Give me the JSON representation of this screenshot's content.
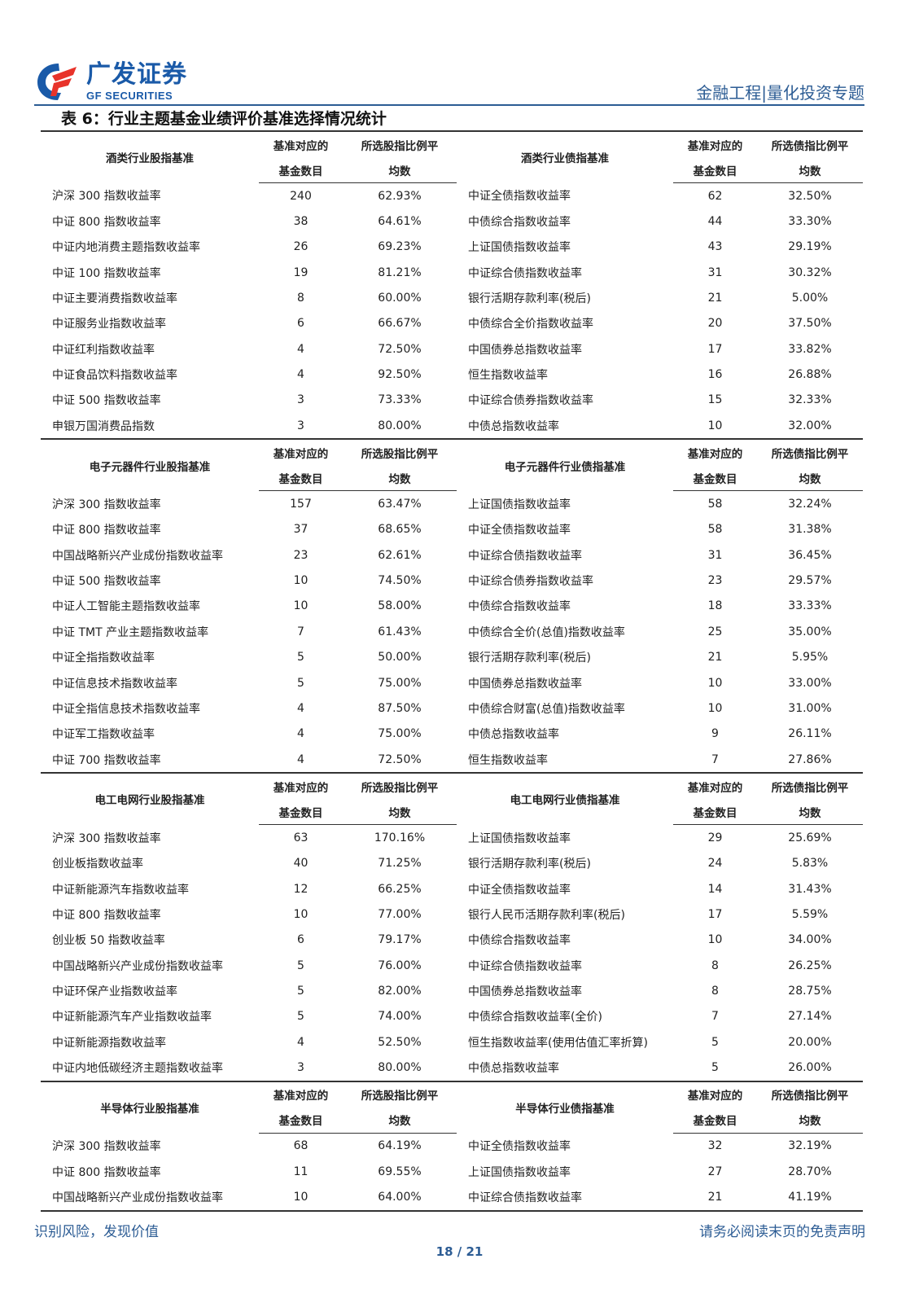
{
  "header": {
    "logo_cn": "广发证券",
    "logo_en": "GF SECURITIES",
    "report_type": "金融工程|量化投资专题",
    "brand_color": "#1a5aa8",
    "accent_color": "#e8332a"
  },
  "table_title": "表 6：行业主题基金业绩评价基准选择情况统计",
  "col_headers": {
    "count_line1": "基准对应的",
    "count_line2": "基金数目",
    "stock_pct_line1": "所选股指比例平",
    "stock_pct_line2": "均数",
    "bond_pct_line1": "所选债指比例平",
    "bond_pct_line2": "均数"
  },
  "sections": [
    {
      "stock_header": "酒类行业股指基准",
      "bond_header": "酒类行业债指基准",
      "rows": [
        {
          "stock": "沪深 300 指数收益率",
          "sc": "240",
          "sp": "62.93%",
          "bond": "中证全债指数收益率",
          "bc": "62",
          "bp": "32.50%"
        },
        {
          "stock": "中证 800 指数收益率",
          "sc": "38",
          "sp": "64.61%",
          "bond": "中债综合指数收益率",
          "bc": "44",
          "bp": "33.30%"
        },
        {
          "stock": "中证内地消费主题指数收益率",
          "sc": "26",
          "sp": "69.23%",
          "bond": "上证国债指数收益率",
          "bc": "43",
          "bp": "29.19%"
        },
        {
          "stock": "中证 100 指数收益率",
          "sc": "19",
          "sp": "81.21%",
          "bond": "中证综合债指数收益率",
          "bc": "31",
          "bp": "30.32%"
        },
        {
          "stock": "中证主要消费指数收益率",
          "sc": "8",
          "sp": "60.00%",
          "bond": "银行活期存款利率(税后)",
          "bc": "21",
          "bp": "5.00%"
        },
        {
          "stock": "中证服务业指数收益率",
          "sc": "6",
          "sp": "66.67%",
          "bond": "中债综合全价指数收益率",
          "bc": "20",
          "bp": "37.50%"
        },
        {
          "stock": "中证红利指数收益率",
          "sc": "4",
          "sp": "72.50%",
          "bond": "中国债券总指数收益率",
          "bc": "17",
          "bp": "33.82%"
        },
        {
          "stock": "中证食品饮料指数收益率",
          "sc": "4",
          "sp": "92.50%",
          "bond": "恒生指数收益率",
          "bc": "16",
          "bp": "26.88%"
        },
        {
          "stock": "中证 500 指数收益率",
          "sc": "3",
          "sp": "73.33%",
          "bond": "中证综合债券指数收益率",
          "bc": "15",
          "bp": "32.33%"
        },
        {
          "stock": "申银万国消费品指数",
          "sc": "3",
          "sp": "80.00%",
          "bond": "中债总指数收益率",
          "bc": "10",
          "bp": "32.00%"
        }
      ]
    },
    {
      "stock_header": "电子元器件行业股指基准",
      "bond_header": "电子元器件行业债指基准",
      "rows": [
        {
          "stock": "沪深 300 指数收益率",
          "sc": "157",
          "sp": "63.47%",
          "bond": "上证国债指数收益率",
          "bc": "58",
          "bp": "32.24%"
        },
        {
          "stock": "中证 800 指数收益率",
          "sc": "37",
          "sp": "68.65%",
          "bond": "中证全债指数收益率",
          "bc": "58",
          "bp": "31.38%"
        },
        {
          "stock": "中国战略新兴产业成份指数收益率",
          "sc": "23",
          "sp": "62.61%",
          "bond": "中证综合债指数收益率",
          "bc": "31",
          "bp": "36.45%"
        },
        {
          "stock": "中证 500 指数收益率",
          "sc": "10",
          "sp": "74.50%",
          "bond": "中证综合债券指数收益率",
          "bc": "23",
          "bp": "29.57%"
        },
        {
          "stock": "中证人工智能主题指数收益率",
          "sc": "10",
          "sp": "58.00%",
          "bond": "中债综合指数收益率",
          "bc": "18",
          "bp": "33.33%"
        },
        {
          "stock": "中证 TMT 产业主题指数收益率",
          "sc": "7",
          "sp": "61.43%",
          "bond": "中债综合全价(总值)指数收益率",
          "bc": "25",
          "bp": "35.00%"
        },
        {
          "stock": "中证全指指数收益率",
          "sc": "5",
          "sp": "50.00%",
          "bond": "银行活期存款利率(税后)",
          "bc": "21",
          "bp": "5.95%"
        },
        {
          "stock": "中证信息技术指数收益率",
          "sc": "5",
          "sp": "75.00%",
          "bond": "中国债券总指数收益率",
          "bc": "10",
          "bp": "33.00%"
        },
        {
          "stock": "中证全指信息技术指数收益率",
          "sc": "4",
          "sp": "87.50%",
          "bond": "中债综合财富(总值)指数收益率",
          "bc": "10",
          "bp": "31.00%"
        },
        {
          "stock": "中证军工指数收益率",
          "sc": "4",
          "sp": "75.00%",
          "bond": "中债总指数收益率",
          "bc": "9",
          "bp": "26.11%"
        },
        {
          "stock": "中证 700 指数收益率",
          "sc": "4",
          "sp": "72.50%",
          "bond": "恒生指数收益率",
          "bc": "7",
          "bp": "27.86%"
        }
      ]
    },
    {
      "stock_header": "电工电网行业股指基准",
      "bond_header": "电工电网行业债指基准",
      "rows": [
        {
          "stock": "沪深 300 指数收益率",
          "sc": "63",
          "sp": "170.16%",
          "bond": "上证国债指数收益率",
          "bc": "29",
          "bp": "25.69%"
        },
        {
          "stock": "创业板指数收益率",
          "sc": "40",
          "sp": "71.25%",
          "bond": "银行活期存款利率(税后)",
          "bc": "24",
          "bp": "5.83%"
        },
        {
          "stock": "中证新能源汽车指数收益率",
          "sc": "12",
          "sp": "66.25%",
          "bond": "中证全债指数收益率",
          "bc": "14",
          "bp": "31.43%"
        },
        {
          "stock": "中证 800 指数收益率",
          "sc": "10",
          "sp": "77.00%",
          "bond": "银行人民币活期存款利率(税后)",
          "bc": "17",
          "bp": "5.59%"
        },
        {
          "stock": "创业板 50 指数收益率",
          "sc": "6",
          "sp": "79.17%",
          "bond": "中债综合指数收益率",
          "bc": "10",
          "bp": "34.00%"
        },
        {
          "stock": "中国战略新兴产业成份指数收益率",
          "sc": "5",
          "sp": "76.00%",
          "bond": "中证综合债指数收益率",
          "bc": "8",
          "bp": "26.25%"
        },
        {
          "stock": "中证环保产业指数收益率",
          "sc": "5",
          "sp": "82.00%",
          "bond": "中国债券总指数收益率",
          "bc": "8",
          "bp": "28.75%"
        },
        {
          "stock": "中证新能源汽车产业指数收益率",
          "sc": "5",
          "sp": "74.00%",
          "bond": "中债综合指数收益率(全价)",
          "bc": "7",
          "bp": "27.14%"
        },
        {
          "stock": "中证新能源指数收益率",
          "sc": "4",
          "sp": "52.50%",
          "bond": "恒生指数收益率(使用估值汇率折算)",
          "bc": "5",
          "bp": "20.00%"
        },
        {
          "stock": "中证内地低碳经济主题指数收益率",
          "sc": "3",
          "sp": "80.00%",
          "bond": "中债总指数收益率",
          "bc": "5",
          "bp": "26.00%"
        }
      ]
    },
    {
      "stock_header": "半导体行业股指基准",
      "bond_header": "半导体行业债指基准",
      "rows": [
        {
          "stock": "沪深 300 指数收益率",
          "sc": "68",
          "sp": "64.19%",
          "bond": "中证全债指数收益率",
          "bc": "32",
          "bp": "32.19%"
        },
        {
          "stock": "中证 800 指数收益率",
          "sc": "11",
          "sp": "69.55%",
          "bond": "上证国债指数收益率",
          "bc": "27",
          "bp": "28.70%"
        },
        {
          "stock": "中国战略新兴产业成份指数收益率",
          "sc": "10",
          "sp": "64.00%",
          "bond": "中证综合债指数收益率",
          "bc": "21",
          "bp": "41.19%"
        }
      ]
    }
  ],
  "footer": {
    "left": "识别风险，发现价值",
    "right": "请务必阅读末页的免责声明",
    "page": "18 / 21"
  }
}
